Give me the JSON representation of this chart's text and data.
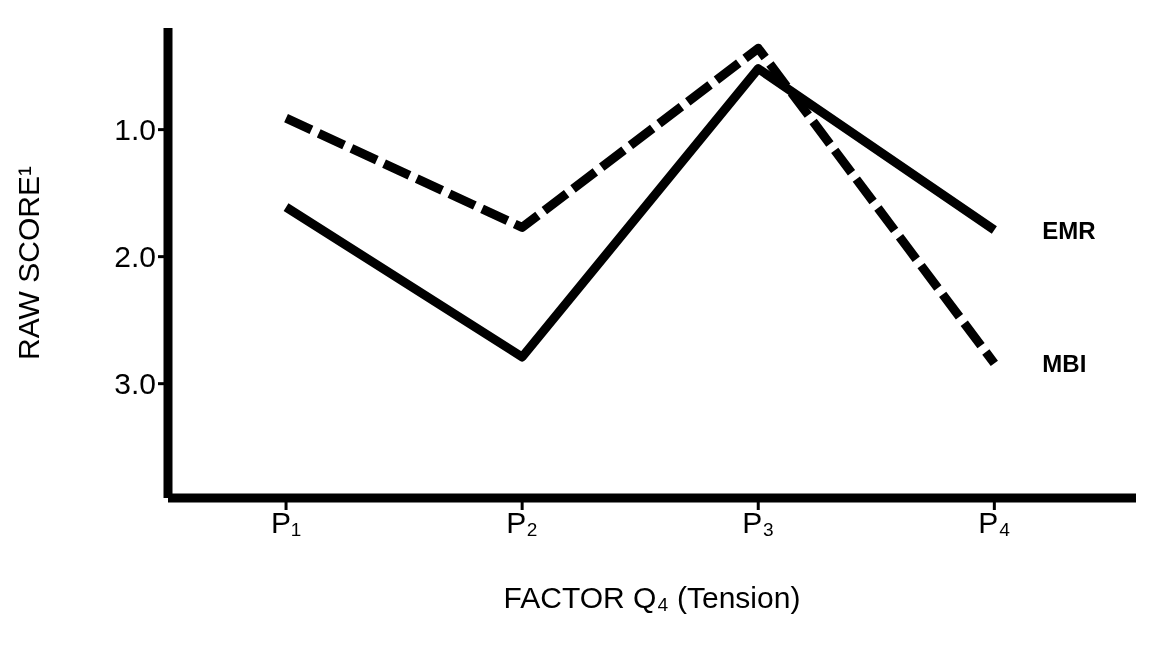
{
  "chart_data": {
    "type": "line",
    "xlabel": "FACTOR Q₄ (Tension)",
    "ylabel": "RAW SCORE¹",
    "categories": [
      "P₁",
      "P₂",
      "P₃",
      "P₄"
    ],
    "series": [
      {
        "name": "EMR",
        "color": "#000000",
        "line_style": "solid",
        "values": [
          1.61,
          2.79,
          0.52,
          1.79
        ]
      },
      {
        "name": "MBI",
        "color": "#000000",
        "line_style": "dashed",
        "values": [
          0.91,
          1.77,
          0.36,
          2.84
        ]
      }
    ],
    "ylim": [
      3.9,
      0.2
    ],
    "yticks": [
      {
        "value": 1,
        "label": "1.0"
      },
      {
        "value": 2,
        "label": "2.0"
      },
      {
        "value": 3,
        "label": "3.0"
      }
    ],
    "grid": false,
    "legend": false,
    "marker": "none"
  }
}
